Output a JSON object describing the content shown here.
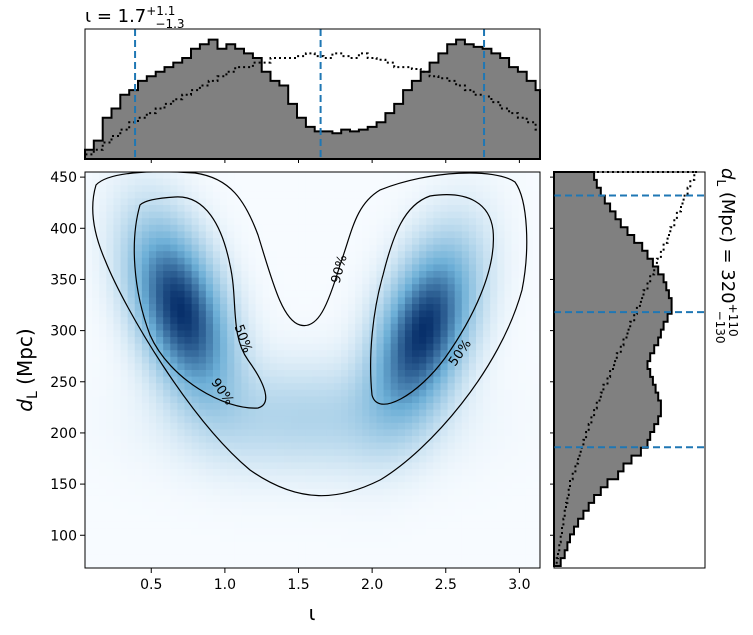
{
  "chart_data": {
    "type": "heatmap",
    "top_title": {
      "prefix": "ι = 1.7",
      "sup": "+1.1",
      "sub": "−1.3"
    },
    "right_title": {
      "prefix": "d",
      "sub_L": "L",
      "middle": " (Mpc) = 320",
      "sup": "+110",
      "sub": "−130"
    },
    "xlabel": "ι",
    "ylabel": {
      "main": "d",
      "sub": "L",
      "unit": " (Mpc)"
    },
    "xlim": [
      0.05,
      3.14
    ],
    "ylim": [
      68,
      455
    ],
    "xticks": [
      0.5,
      1.0,
      1.5,
      2.0,
      2.5,
      3.0
    ],
    "xtick_labels": [
      "0.5",
      "1.0",
      "1.5",
      "2.0",
      "2.5",
      "3.0"
    ],
    "yticks": [
      100,
      150,
      200,
      250,
      300,
      350,
      400,
      450
    ],
    "ytick_labels": [
      "100",
      "150",
      "200",
      "250",
      "300",
      "350",
      "400",
      "450"
    ],
    "contour_labels": [
      {
        "text": "90%",
        "x": 0.98,
        "y": 240,
        "rot": 55
      },
      {
        "text": "50%",
        "x": 1.12,
        "y": 292,
        "rot": 70
      },
      {
        "text": "90%",
        "x": 1.78,
        "y": 360,
        "rot": -75
      },
      {
        "text": "50%",
        "x": 2.6,
        "y": 278,
        "rot": -55
      }
    ],
    "iota_quantiles": [
      0.39,
      1.65,
      2.76
    ],
    "dl_quantiles": [
      186,
      318,
      432
    ],
    "iota_hist": {
      "start": 0.05,
      "width": 0.06,
      "posterior": [
        0.1,
        0.2,
        0.45,
        0.55,
        0.7,
        0.75,
        0.85,
        0.9,
        0.95,
        1.0,
        1.05,
        1.1,
        1.2,
        1.25,
        1.3,
        1.2,
        1.25,
        1.2,
        1.15,
        1.1,
        0.95,
        0.85,
        0.8,
        0.6,
        0.45,
        0.35,
        0.3,
        0.3,
        0.28,
        0.32,
        0.3,
        0.32,
        0.35,
        0.4,
        0.5,
        0.6,
        0.75,
        0.85,
        0.95,
        1.05,
        1.15,
        1.25,
        1.3,
        1.25,
        1.22,
        1.2,
        1.15,
        1.1,
        1.0,
        0.95,
        0.85,
        0.75,
        0.6,
        0.45,
        0.3,
        0.2,
        0.12,
        0.08
      ],
      "prior": [
        0.05,
        0.1,
        0.18,
        0.25,
        0.32,
        0.4,
        0.45,
        0.5,
        0.55,
        0.6,
        0.65,
        0.7,
        0.75,
        0.8,
        0.85,
        0.9,
        0.95,
        1.0,
        1.0,
        1.05,
        1.05,
        1.1,
        1.1,
        1.1,
        1.12,
        1.15,
        1.12,
        1.1,
        1.15,
        1.12,
        1.1,
        1.15,
        1.1,
        1.08,
        1.05,
        1.0,
        1.0,
        0.98,
        0.95,
        0.9,
        0.88,
        0.85,
        0.8,
        0.75,
        0.7,
        0.68,
        0.62,
        0.55,
        0.5,
        0.45,
        0.4,
        0.32,
        0.28,
        0.2,
        0.15,
        0.1,
        0.06,
        0.03
      ]
    },
    "dl_hist": {
      "start": 70,
      "width": 7.7,
      "posterior": [
        0.05,
        0.08,
        0.1,
        0.12,
        0.15,
        0.18,
        0.22,
        0.26,
        0.3,
        0.35,
        0.4,
        0.48,
        0.52,
        0.58,
        0.65,
        0.7,
        0.72,
        0.75,
        0.78,
        0.8,
        0.8,
        0.78,
        0.76,
        0.74,
        0.72,
        0.7,
        0.72,
        0.75,
        0.78,
        0.8,
        0.82,
        0.85,
        0.88,
        0.88,
        0.86,
        0.84,
        0.82,
        0.78,
        0.74,
        0.7,
        0.66,
        0.6,
        0.55,
        0.5,
        0.46,
        0.42,
        0.38,
        0.35,
        0.32,
        0.3,
        0.28
      ],
      "prior": [
        0.02,
        0.03,
        0.04,
        0.05,
        0.06,
        0.07,
        0.08,
        0.09,
        0.1,
        0.11,
        0.12,
        0.14,
        0.16,
        0.18,
        0.2,
        0.22,
        0.24,
        0.26,
        0.28,
        0.3,
        0.32,
        0.35,
        0.37,
        0.4,
        0.42,
        0.45,
        0.47,
        0.5,
        0.52,
        0.55,
        0.57,
        0.6,
        0.62,
        0.65,
        0.67,
        0.7,
        0.72,
        0.75,
        0.77,
        0.8,
        0.82,
        0.85,
        0.87,
        0.9,
        0.92,
        0.95,
        0.97,
        1.0,
        1.02,
        1.05,
        1.07
      ]
    },
    "density_blobs": [
      {
        "x": 0.7,
        "y": 320,
        "sx": 0.22,
        "sy": 55,
        "rho": -0.45,
        "w": 1.0
      },
      {
        "x": 2.35,
        "y": 300,
        "sx": 0.22,
        "sy": 55,
        "rho": 0.45,
        "w": 1.0
      },
      {
        "x": 1.55,
        "y": 215,
        "sx": 0.55,
        "sy": 35,
        "rho": 0.0,
        "w": 0.22
      }
    ],
    "colors": {
      "hist_fill": "#808080",
      "quantile": "#1f77b4",
      "cmap_low": "#f7fbff",
      "cmap_high": "#08306b"
    }
  }
}
